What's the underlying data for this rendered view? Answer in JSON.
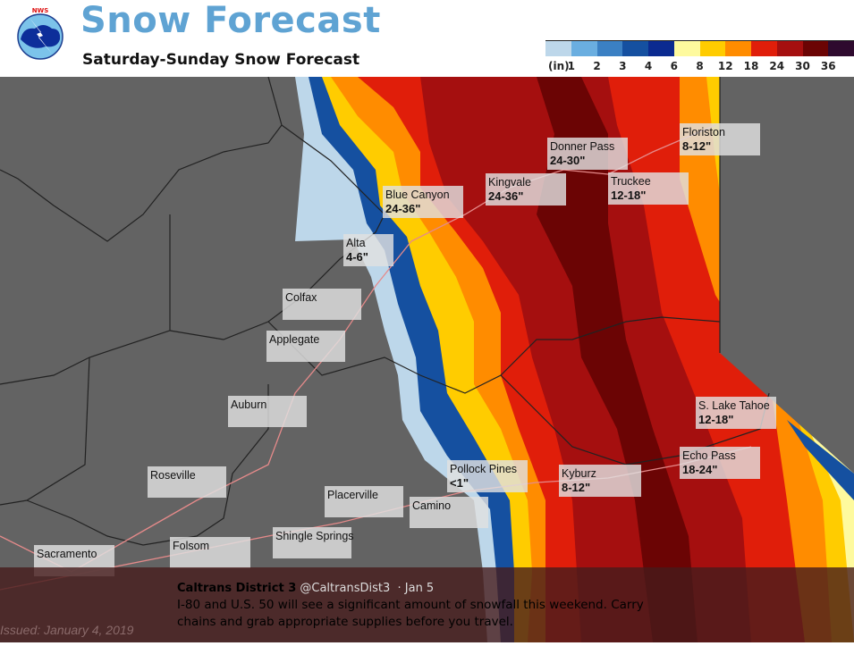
{
  "header": {
    "title": "Snow Forecast",
    "subtitle": "Saturday-Sunday Snow Forecast",
    "logo_text": "NATIONAL WEATHER SERVICE"
  },
  "legend": {
    "unit": "(in)",
    "ticks": [
      "1",
      "2",
      "3",
      "4",
      "6",
      "8",
      "12",
      "18",
      "24",
      "30",
      "36"
    ],
    "colors": [
      "#bdd7ea",
      "#6aaee0",
      "#3b80c3",
      "#1550a0",
      "#0b2a90",
      "#fefa9e",
      "#ffcc00",
      "#ff8c00",
      "#e01e0a",
      "#a50f0f",
      "#6b0404",
      "#2e0a2e"
    ]
  },
  "map": {
    "colors": {
      "background": "#636363",
      "light_blue": "#bdd7ea",
      "blue": "#3b80c3",
      "dark_blue": "#0b2a90",
      "yellow": "#fefa9e",
      "gold": "#ffcc00",
      "orange": "#ff8c00",
      "red": "#e01e0a",
      "dark_red": "#a50f0f",
      "maroon": "#6b0404"
    },
    "labels": [
      {
        "name": "Floriston",
        "amount": "8-12\""
      },
      {
        "name": "Donner Pass",
        "amount": "24-30\""
      },
      {
        "name": "Truckee",
        "amount": "12-18\""
      },
      {
        "name": "Kingvale",
        "amount": "24-36\""
      },
      {
        "name": "Blue Canyon",
        "amount": "24-36\""
      },
      {
        "name": "Alta",
        "amount": "4-6\""
      },
      {
        "name": "Colfax",
        "amount": ""
      },
      {
        "name": "Applegate",
        "amount": ""
      },
      {
        "name": "Auburn",
        "amount": ""
      },
      {
        "name": "S. Lake Tahoe",
        "amount": "12-18\""
      },
      {
        "name": "Echo Pass",
        "amount": "18-24\""
      },
      {
        "name": "Pollock Pines",
        "amount": "<1\""
      },
      {
        "name": "Kyburz",
        "amount": "8-12\""
      },
      {
        "name": "Roseville",
        "amount": ""
      },
      {
        "name": "Placerville",
        "amount": ""
      },
      {
        "name": "Camino",
        "amount": ""
      },
      {
        "name": "Shingle Springs",
        "amount": ""
      },
      {
        "name": "Folsom",
        "amount": ""
      },
      {
        "name": "Sacramento",
        "amount": ""
      }
    ],
    "issued": "Issued: January 4, 2019"
  },
  "tweet": {
    "author": "Caltrans District 3",
    "handle": "@CaltransDist3",
    "date": "· Jan 5",
    "text": "I-80 and U.S. 50 will see a significant amount of snowfall this weekend. Carry chains and grab appropriate supplies before you travel."
  }
}
